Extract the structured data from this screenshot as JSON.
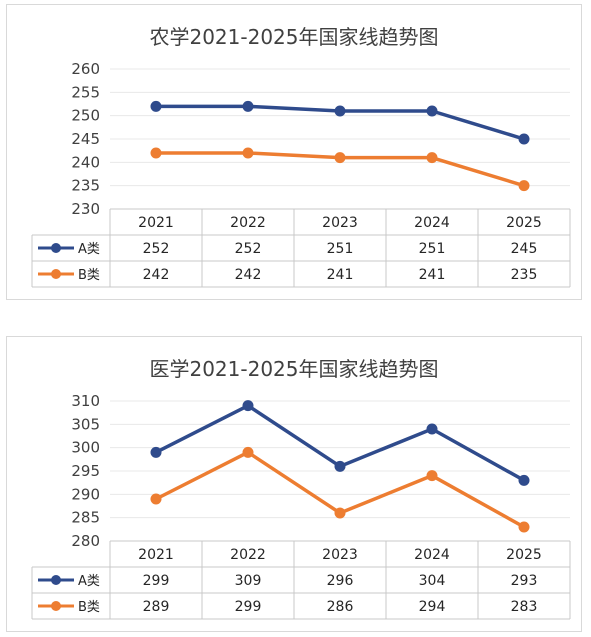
{
  "chart_data": [
    {
      "type": "line",
      "title": "农学2021-2025年国家线趋势图",
      "categories": [
        "2021",
        "2022",
        "2023",
        "2024",
        "2025"
      ],
      "ylim": [
        230,
        260
      ],
      "yticks": [
        "260",
        "255",
        "250",
        "245",
        "240",
        "235",
        "230"
      ],
      "grid": true,
      "legend": "data-table",
      "series": [
        {
          "name": "A类",
          "values": [
            252,
            252,
            251,
            251,
            245
          ],
          "color": "#2f4b8c"
        },
        {
          "name": "B类",
          "values": [
            242,
            242,
            241,
            241,
            235
          ],
          "color": "#ed7d31"
        }
      ]
    },
    {
      "type": "line",
      "title": "医学2021-2025年国家线趋势图",
      "categories": [
        "2021",
        "2022",
        "2023",
        "2024",
        "2025"
      ],
      "ylim": [
        280,
        310
      ],
      "yticks": [
        "310",
        "305",
        "300",
        "295",
        "290",
        "285",
        "280"
      ],
      "grid": true,
      "legend": "data-table",
      "series": [
        {
          "name": "A类",
          "values": [
            299,
            309,
            296,
            304,
            293
          ],
          "color": "#2f4b8c"
        },
        {
          "name": "B类",
          "values": [
            289,
            299,
            286,
            294,
            283
          ],
          "color": "#ed7d31"
        }
      ]
    }
  ]
}
